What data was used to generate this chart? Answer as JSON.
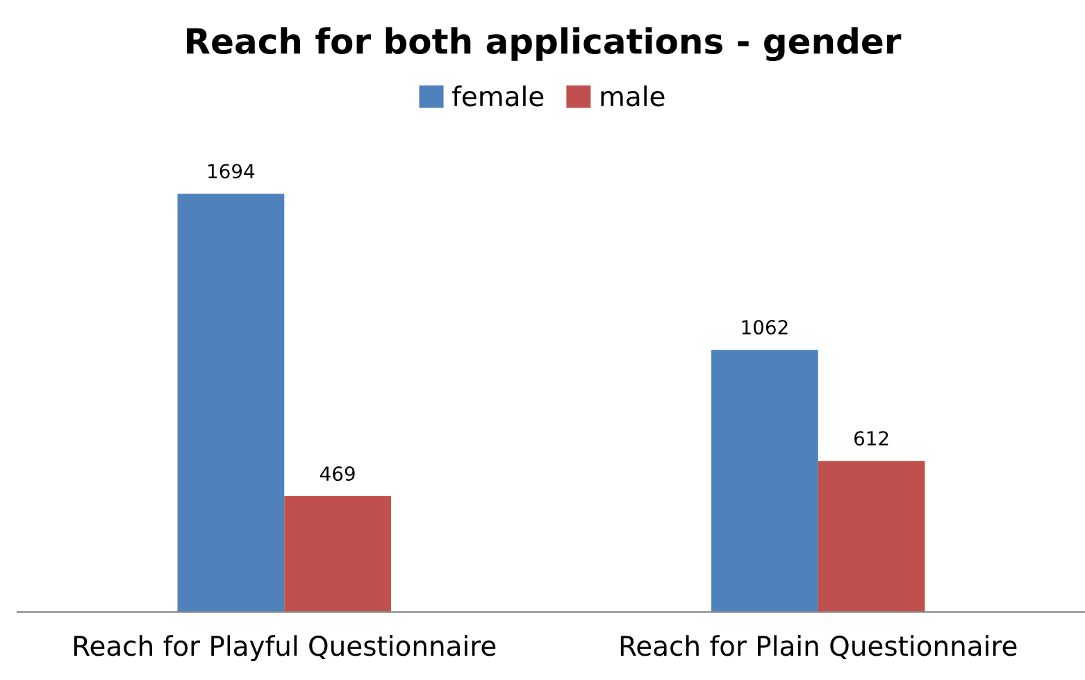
{
  "chart_data": {
    "type": "bar",
    "title": "Reach for both applications - gender",
    "categories": [
      "Reach for Playful Questionnaire",
      "Reach for Plain Questionnaire"
    ],
    "series": [
      {
        "name": "female",
        "color": "#4f81bd",
        "values": [
          1694,
          1062
        ]
      },
      {
        "name": "male",
        "color": "#c0504d",
        "values": [
          469,
          612
        ]
      }
    ],
    "data_labels": true,
    "legend": "top",
    "grid": false
  }
}
